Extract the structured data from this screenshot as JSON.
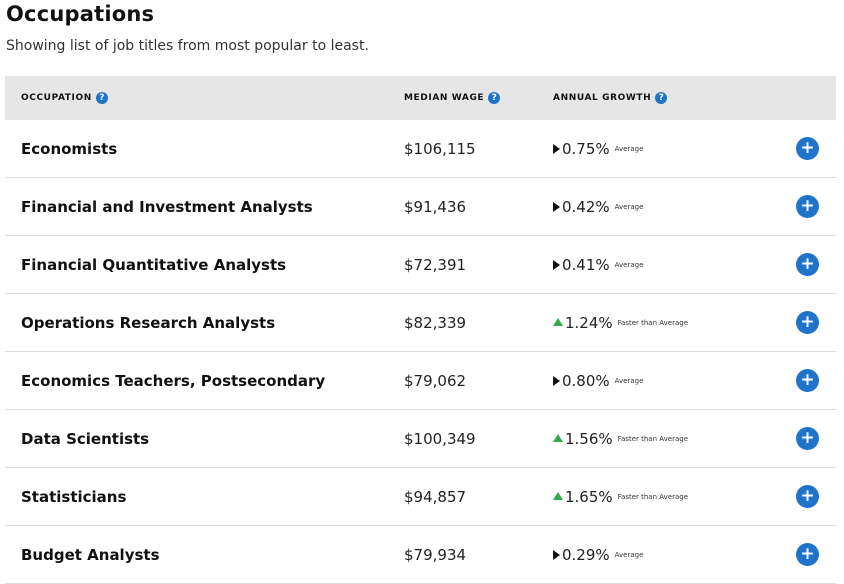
{
  "page": {
    "title": "Occupations",
    "subtitle": "Showing list of job titles from most popular to least."
  },
  "table": {
    "headers": {
      "occupation": "OCCUPATION",
      "median_wage": "MEDIAN WAGE",
      "annual_growth": "ANNUAL GROWTH",
      "help_glyph": "?"
    },
    "expand_glyph": "+",
    "rows": [
      {
        "title": "Economists",
        "wage": "$106,115",
        "growth": "0.75%",
        "trend": "flat",
        "rating": "Average"
      },
      {
        "title": "Financial and Investment Analysts",
        "wage": "$91,436",
        "growth": "0.42%",
        "trend": "flat",
        "rating": "Average"
      },
      {
        "title": "Financial Quantitative Analysts",
        "wage": "$72,391",
        "growth": "0.41%",
        "trend": "flat",
        "rating": "Average"
      },
      {
        "title": "Operations Research Analysts",
        "wage": "$82,339",
        "growth": "1.24%",
        "trend": "up",
        "rating": "Faster than Average"
      },
      {
        "title": "Economics Teachers, Postsecondary",
        "wage": "$79,062",
        "growth": "0.80%",
        "trend": "flat",
        "rating": "Average"
      },
      {
        "title": "Data Scientists",
        "wage": "$100,349",
        "growth": "1.56%",
        "trend": "up",
        "rating": "Faster than Average"
      },
      {
        "title": "Statisticians",
        "wage": "$94,857",
        "growth": "1.65%",
        "trend": "up",
        "rating": "Faster than Average"
      },
      {
        "title": "Budget Analysts",
        "wage": "$79,934",
        "growth": "0.29%",
        "trend": "flat",
        "rating": "Average"
      }
    ]
  },
  "colors": {
    "accent": "#1f74c9",
    "growth_up": "#2eaa4a",
    "header_bg": "#e6e6e6"
  }
}
